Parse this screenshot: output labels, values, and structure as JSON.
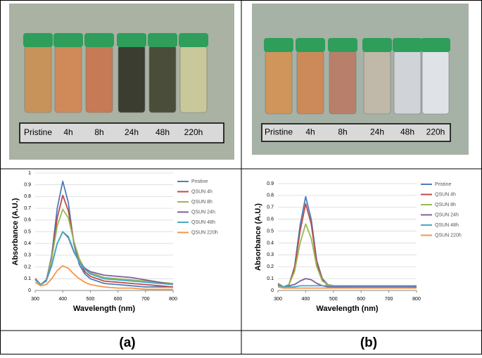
{
  "panels": [
    {
      "labels": [
        "Pristine",
        "4h",
        "8h",
        "24h",
        "48h",
        "220h"
      ],
      "caption": "(a)"
    },
    {
      "labels": [
        "Pristine",
        "4h",
        "8h",
        "24h",
        "48h",
        "220h"
      ],
      "caption": "(b)"
    }
  ],
  "chart_data": [
    {
      "type": "line",
      "y_label": "Absorbance (A.U.)",
      "x_label": "Wavelength (nm)",
      "xlim": [
        300,
        800
      ],
      "xticks": [
        300,
        400,
        500,
        600,
        700,
        800
      ],
      "ylim": [
        0,
        1
      ],
      "yticks": [
        0,
        0.1,
        0.2,
        0.3,
        0.4,
        0.5,
        0.6,
        0.7,
        0.8,
        0.9,
        1
      ],
      "grid": true,
      "legend": "right",
      "x": [
        300,
        320,
        340,
        360,
        380,
        400,
        420,
        440,
        460,
        480,
        500,
        550,
        600,
        650,
        700,
        750,
        800
      ],
      "series": [
        {
          "name": "Pristine",
          "color": "#4a7ebb",
          "values": [
            0.1,
            0.05,
            0.08,
            0.3,
            0.7,
            0.93,
            0.75,
            0.4,
            0.22,
            0.14,
            0.1,
            0.06,
            0.05,
            0.04,
            0.03,
            0.03,
            0.03
          ]
        },
        {
          "name": "QSUN 4h",
          "color": "#be4b48",
          "values": [
            0.1,
            0.05,
            0.08,
            0.28,
            0.62,
            0.81,
            0.68,
            0.42,
            0.25,
            0.16,
            0.12,
            0.08,
            0.07,
            0.06,
            0.05,
            0.04,
            0.03
          ]
        },
        {
          "name": "QSUN 8h",
          "color": "#98b954",
          "values": [
            0.1,
            0.05,
            0.08,
            0.27,
            0.55,
            0.69,
            0.62,
            0.42,
            0.27,
            0.18,
            0.15,
            0.11,
            0.1,
            0.09,
            0.08,
            0.07,
            0.06
          ]
        },
        {
          "name": "QSUN 24h",
          "color": "#7d60a0",
          "values": [
            0.1,
            0.05,
            0.09,
            0.22,
            0.4,
            0.5,
            0.45,
            0.33,
            0.24,
            0.19,
            0.16,
            0.13,
            0.12,
            0.11,
            0.09,
            0.07,
            0.05
          ]
        },
        {
          "name": "QSUN 48h",
          "color": "#46aac5",
          "values": [
            0.09,
            0.05,
            0.08,
            0.21,
            0.4,
            0.5,
            0.46,
            0.34,
            0.24,
            0.18,
            0.14,
            0.1,
            0.09,
            0.08,
            0.07,
            0.06,
            0.05
          ]
        },
        {
          "name": "QSUN 220h",
          "color": "#f79646",
          "values": [
            0.07,
            0.04,
            0.05,
            0.1,
            0.17,
            0.21,
            0.19,
            0.14,
            0.1,
            0.07,
            0.05,
            0.03,
            0.02,
            0.02,
            0.01,
            0.01,
            0.01
          ]
        }
      ]
    },
    {
      "type": "line",
      "y_label": "Absorbance (A.U.)",
      "x_label": "Wavelength (nm)",
      "xlim": [
        300,
        800
      ],
      "xticks": [
        300,
        400,
        500,
        600,
        700,
        800
      ],
      "ylim": [
        0,
        0.9
      ],
      "yticks": [
        0,
        0.1,
        0.2,
        0.3,
        0.4,
        0.5,
        0.6,
        0.7,
        0.8,
        0.9
      ],
      "grid": true,
      "legend": "right",
      "x": [
        300,
        320,
        340,
        360,
        380,
        400,
        420,
        440,
        460,
        480,
        500,
        550,
        600,
        650,
        700,
        750,
        800
      ],
      "series": [
        {
          "name": "Pristine",
          "color": "#4a7ebb",
          "values": [
            0.06,
            0.03,
            0.05,
            0.2,
            0.55,
            0.79,
            0.6,
            0.25,
            0.1,
            0.05,
            0.04,
            0.03,
            0.03,
            0.03,
            0.03,
            0.03,
            0.03
          ]
        },
        {
          "name": "QSUN 4h",
          "color": "#be4b48",
          "values": [
            0.06,
            0.03,
            0.05,
            0.19,
            0.5,
            0.73,
            0.56,
            0.23,
            0.09,
            0.04,
            0.03,
            0.02,
            0.02,
            0.02,
            0.02,
            0.02,
            0.02
          ]
        },
        {
          "name": "QSUN 8h",
          "color": "#98b954",
          "values": [
            0.06,
            0.03,
            0.05,
            0.16,
            0.4,
            0.56,
            0.44,
            0.2,
            0.08,
            0.05,
            0.04,
            0.03,
            0.03,
            0.03,
            0.03,
            0.03,
            0.03
          ]
        },
        {
          "name": "QSUN 24h",
          "color": "#7d60a0",
          "values": [
            0.05,
            0.03,
            0.04,
            0.05,
            0.08,
            0.1,
            0.09,
            0.06,
            0.04,
            0.03,
            0.03,
            0.03,
            0.03,
            0.03,
            0.03,
            0.03,
            0.03
          ]
        },
        {
          "name": "QSUN 48h",
          "color": "#46aac5",
          "values": [
            0.04,
            0.03,
            0.03,
            0.03,
            0.04,
            0.04,
            0.04,
            0.04,
            0.04,
            0.04,
            0.04,
            0.04,
            0.04,
            0.04,
            0.04,
            0.04,
            0.04
          ]
        },
        {
          "name": "QSUN 220h",
          "color": "#f79646",
          "values": [
            0.03,
            0.02,
            0.02,
            0.02,
            0.02,
            0.02,
            0.02,
            0.02,
            0.02,
            0.02,
            0.02,
            0.02,
            0.02,
            0.02,
            0.02,
            0.02,
            0.02
          ]
        }
      ]
    }
  ]
}
